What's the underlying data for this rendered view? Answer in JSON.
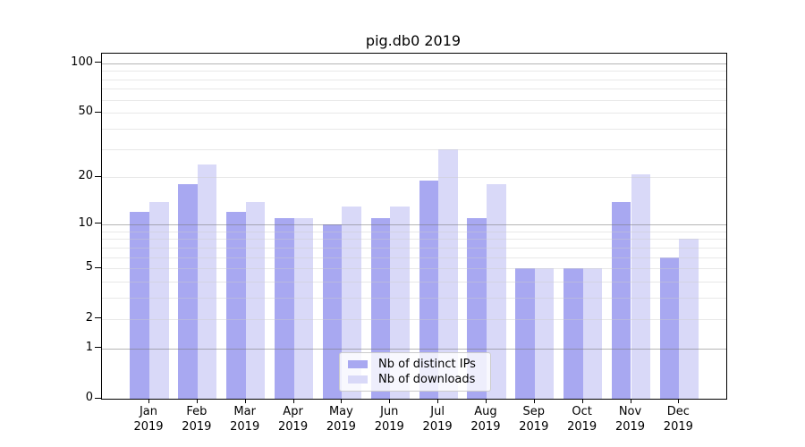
{
  "chart_data": {
    "type": "bar",
    "title": "pig.db0 2019",
    "categories": [
      "Jan",
      "Feb",
      "Mar",
      "Apr",
      "May",
      "Jun",
      "Jul",
      "Aug",
      "Sep",
      "Oct",
      "Nov",
      "Dec"
    ],
    "category_year": "2019",
    "series": [
      {
        "name": "Nb of distinct IPs",
        "color": "#a8a8f1",
        "values": [
          12,
          18,
          12,
          11,
          10,
          11,
          19,
          11,
          5,
          5,
          14,
          6
        ]
      },
      {
        "name": "Nb of downloads",
        "color": "#d9d9f8",
        "values": [
          14,
          24,
          14,
          11,
          13,
          13,
          30,
          18,
          5,
          5,
          21,
          8
        ]
      }
    ],
    "yscale": "log1p",
    "ylim": [
      0,
      114
    ],
    "yticks": [
      0,
      1,
      2,
      5,
      10,
      20,
      50,
      100
    ],
    "grid": {
      "minor_lines": [
        2,
        3,
        4,
        5,
        6,
        7,
        8,
        9,
        20,
        30,
        40,
        50,
        60,
        70,
        80,
        90
      ],
      "major_lines": [
        1,
        10,
        100
      ]
    },
    "legend_position": "lower-center-inside"
  }
}
